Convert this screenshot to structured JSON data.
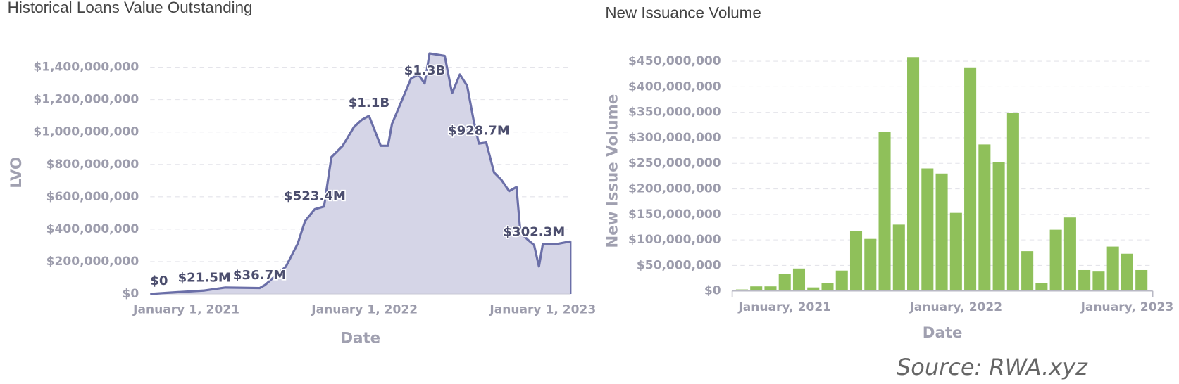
{
  "chart_data": [
    {
      "type": "line",
      "title": "Historical Loans Value Outstanding",
      "x_label": "Date",
      "y_label": "LVO",
      "color": "#6b6fa8",
      "fill": "#d5d5e7",
      "x": [
        "2020-10-19",
        "2020-12-01",
        "2021-02-07",
        "2021-03-22",
        "2021-05-31",
        "2021-06-11",
        "2021-07-24",
        "2021-08-17",
        "2021-09-01",
        "2021-09-21",
        "2021-10-10",
        "2021-10-25",
        "2021-11-17",
        "2021-12-10",
        "2021-12-26",
        "2022-01-10",
        "2022-02-03",
        "2022-02-18",
        "2022-02-26",
        "2022-03-21",
        "2022-04-06",
        "2022-04-21",
        "2022-05-04",
        "2022-05-14",
        "2022-06-14",
        "2022-06-29",
        "2022-07-15",
        "2022-07-30",
        "2022-08-12",
        "2022-08-23",
        "2022-09-07",
        "2022-09-23",
        "2022-10-08",
        "2022-10-24",
        "2022-11-08",
        "2022-11-16",
        "2022-12-01",
        "2022-12-14",
        "2022-12-24",
        "2023-01-01",
        "2023-02-01",
        "2023-02-27"
      ],
      "values": [
        0,
        9000000,
        21500000,
        40000000,
        36700000,
        55000000,
        170000000,
        310000000,
        450000000,
        523400000,
        540000000,
        845000000,
        915000000,
        1030000000,
        1075000000,
        1100000000,
        915000000,
        915000000,
        1050000000,
        1215000000,
        1330000000,
        1355000000,
        1300000000,
        1485000000,
        1470000000,
        1240000000,
        1355000000,
        1285000000,
        1075000000,
        928700000,
        935000000,
        750000000,
        705000000,
        635000000,
        660000000,
        380000000,
        335000000,
        302300000,
        170000000,
        310000000,
        310000000,
        325000000
      ],
      "value_labels": [
        "$0",
        null,
        "$21.5M",
        null,
        "$36.7M",
        null,
        null,
        null,
        null,
        "$523.4M",
        null,
        null,
        null,
        null,
        null,
        "$1.1B",
        null,
        null,
        null,
        null,
        null,
        null,
        "$1.3B",
        null,
        null,
        null,
        null,
        null,
        null,
        "$928.7M",
        null,
        null,
        null,
        null,
        null,
        null,
        null,
        "$302.3M",
        null,
        null,
        null,
        null
      ],
      "xlim": [
        "2020-10-19",
        "2023-02-27"
      ],
      "xticks": [
        {
          "value": "2021-01-01",
          "label": "January 1, 2021"
        },
        {
          "value": "2022-01-01",
          "label": "January 1, 2022"
        },
        {
          "value": "2023-01-01",
          "label": "January 1, 2023"
        }
      ],
      "ylim": [
        0,
        1500000000
      ],
      "yticks": [
        {
          "value": 0,
          "label": "$0"
        },
        {
          "value": 200000000,
          "label": "$200,000,000"
        },
        {
          "value": 400000000,
          "label": "$400,000,000"
        },
        {
          "value": 600000000,
          "label": "$600,000,000"
        },
        {
          "value": 800000000,
          "label": "$800,000,000"
        },
        {
          "value": 1000000000,
          "label": "$1,000,000,000"
        },
        {
          "value": 1200000000,
          "label": "$1,200,000,000"
        },
        {
          "value": 1400000000,
          "label": "$1,400,000,000"
        }
      ],
      "grid": true
    },
    {
      "type": "bar",
      "title": "New Issuance Volume",
      "x_label": "Date",
      "y_label": "New Issue Volume",
      "color": "#8fc05a",
      "x": [
        "2020-10",
        "2020-11",
        "2020-12",
        "2021-01",
        "2021-02",
        "2021-03",
        "2021-04",
        "2021-05",
        "2021-06",
        "2021-07",
        "2021-08",
        "2021-09",
        "2021-10",
        "2021-11",
        "2021-12",
        "2022-01",
        "2022-02",
        "2022-03",
        "2022-04",
        "2022-05",
        "2022-06",
        "2022-07",
        "2022-08",
        "2022-09",
        "2022-10",
        "2022-11",
        "2022-12",
        "2023-01",
        "2023-02"
      ],
      "values": [
        3000000,
        9000000,
        9000000,
        33000000,
        44000000,
        7000000,
        16000000,
        40000000,
        118000000,
        102000000,
        311000000,
        130000000,
        458000000,
        240000000,
        230000000,
        153000000,
        438000000,
        287000000,
        252000000,
        349000000,
        78000000,
        16000000,
        120000000,
        144000000,
        41000000,
        38000000,
        87000000,
        73000000,
        41000000
      ],
      "xlim": [
        "2020-09",
        "2023-03"
      ],
      "xticks": [
        {
          "value": "2021-01",
          "label": "January, 2021"
        },
        {
          "value": "2022-01",
          "label": "January, 2022"
        },
        {
          "value": "2023-01",
          "label": "January, 2023"
        }
      ],
      "ylim": [
        0,
        470000000
      ],
      "yticks": [
        {
          "value": 0,
          "label": "$0"
        },
        {
          "value": 50000000,
          "label": "$50,000,000"
        },
        {
          "value": 100000000,
          "label": "$100,000,000"
        },
        {
          "value": 150000000,
          "label": "$150,000,000"
        },
        {
          "value": 200000000,
          "label": "$200,000,000"
        },
        {
          "value": 250000000,
          "label": "$250,000,000"
        },
        {
          "value": 300000000,
          "label": "$300,000,000"
        },
        {
          "value": 350000000,
          "label": "$350,000,000"
        },
        {
          "value": 400000000,
          "label": "$400,000,000"
        },
        {
          "value": 450000000,
          "label": "$450,000,000"
        }
      ],
      "grid": true
    }
  ],
  "source": "Source: RWA.xyz"
}
